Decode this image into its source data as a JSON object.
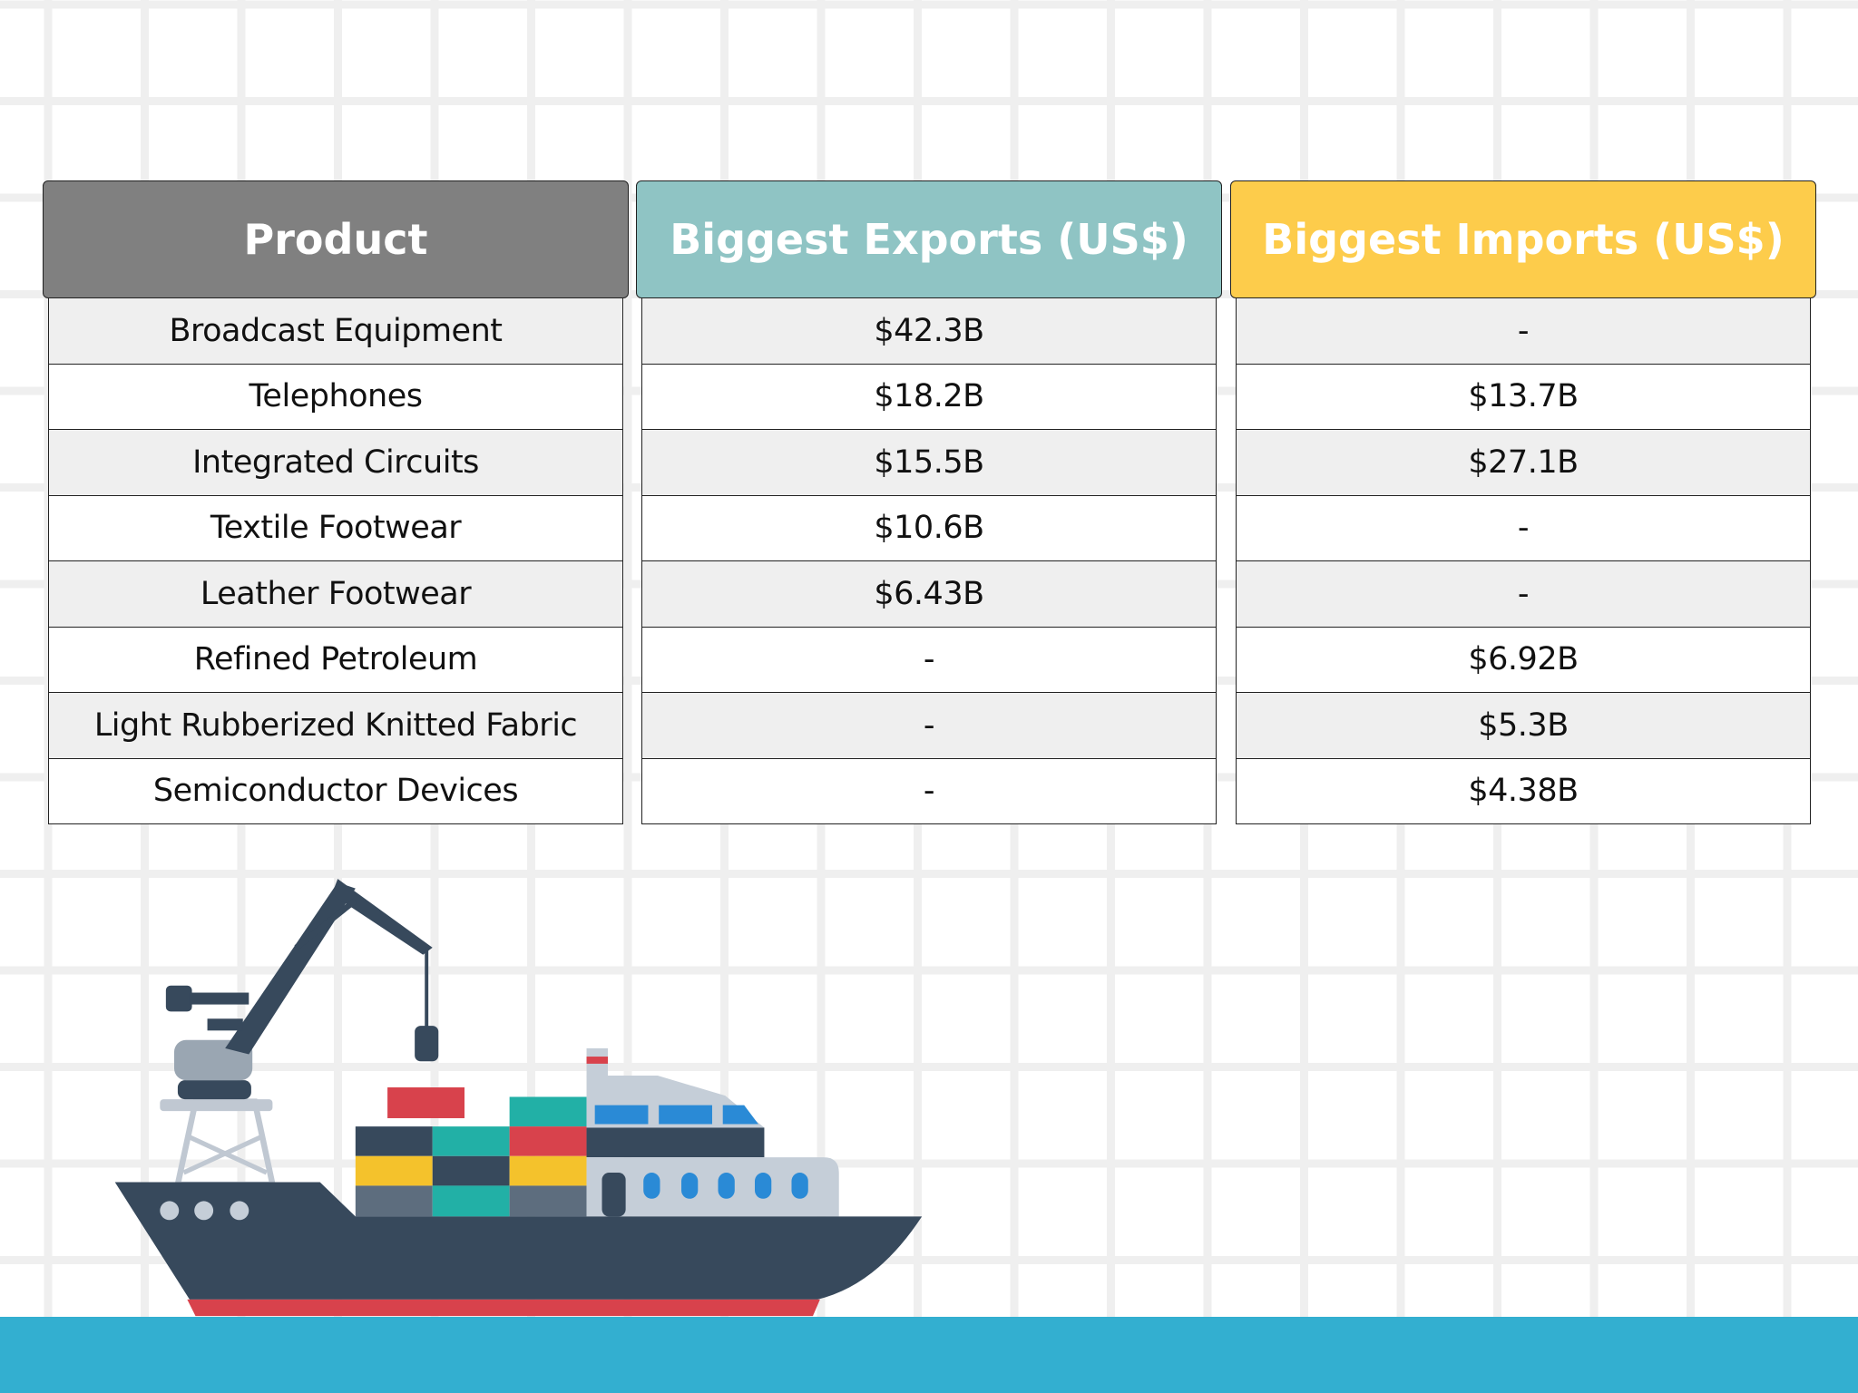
{
  "table": {
    "headers": [
      "Product",
      "Biggest Exports (US$)",
      "Biggest Imports (US$)"
    ],
    "rows": [
      [
        "Broadcast Equipment",
        "$42.3B",
        "-"
      ],
      [
        "Telephones",
        "$18.2B",
        "$13.7B"
      ],
      [
        "Integrated Circuits",
        "$15.5B",
        "$27.1B"
      ],
      [
        "Textile Footwear",
        "$10.6B",
        "-"
      ],
      [
        "Leather Footwear",
        "$6.43B",
        "-"
      ],
      [
        "Refined Petroleum",
        "-",
        "$6.92B"
      ],
      [
        "Light Rubberized Knitted Fabric",
        "-",
        "$5.3B"
      ],
      [
        "Semiconductor Devices",
        "-",
        "$4.38B"
      ]
    ]
  }
}
